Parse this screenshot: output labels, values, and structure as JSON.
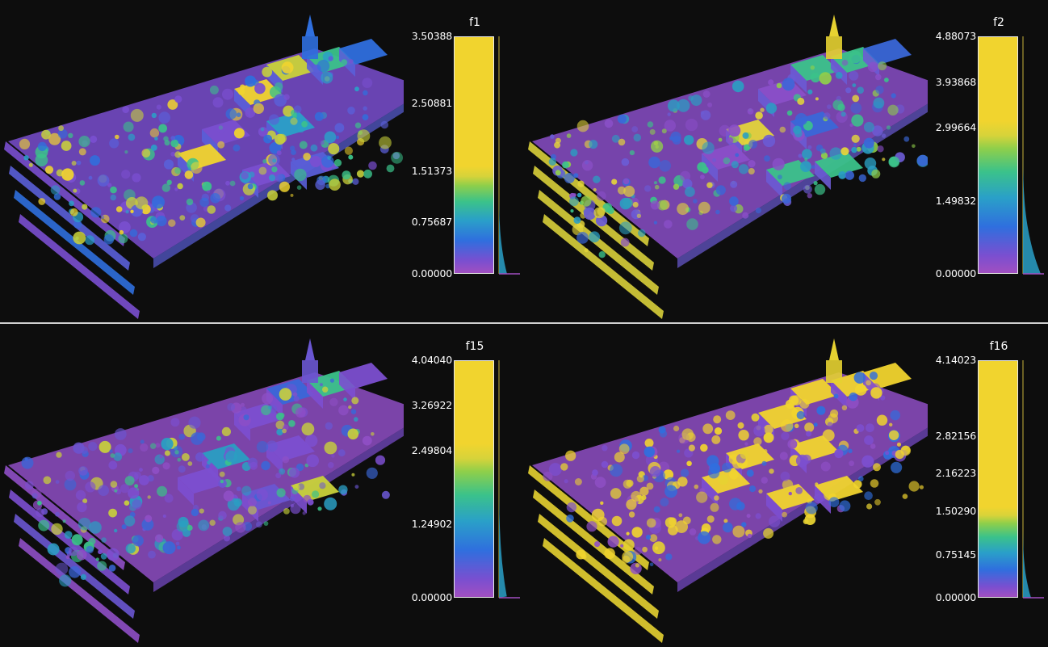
{
  "colors": {
    "background": "#0d0d0d",
    "divider": "#cfcfcf",
    "colormap": [
      "#a14fc1",
      "#2f6fde",
      "#3bc28a",
      "#f1d42e"
    ]
  },
  "views": [
    {
      "feature": "f1",
      "ticks": [
        "3.50388",
        "2.50881",
        "1.51373",
        "0.75687",
        "0.00000"
      ],
      "tick_values": [
        3.50388,
        2.50881,
        1.51373,
        0.75687,
        0.0
      ],
      "max_value": 3.50388,
      "split_value": 1.51373,
      "palette": "low"
    },
    {
      "feature": "f2",
      "ticks": [
        "4.88073",
        "3.93868",
        "2.99664",
        "1.49832",
        "0.00000"
      ],
      "tick_values": [
        4.88073,
        3.93868,
        2.99664,
        1.49832,
        0.0
      ],
      "max_value": 4.88073,
      "split_value": 2.99664,
      "palette": "mid"
    },
    {
      "feature": "f15",
      "ticks": [
        "4.04040",
        "3.26922",
        "2.49804",
        "1.24902",
        "0.00000"
      ],
      "tick_values": [
        4.0404,
        3.26922,
        2.49804,
        1.24902,
        0.0
      ],
      "max_value": 4.0404,
      "split_value": 2.49804,
      "palette": "purple"
    },
    {
      "feature": "f16",
      "ticks": [
        "4.14023",
        "2.82156",
        "2.16223",
        "1.50290",
        "0.75145",
        "0.00000"
      ],
      "tick_values": [
        4.14023,
        2.82156,
        2.16223,
        1.5029,
        0.75145,
        0.0
      ],
      "max_value": 4.14023,
      "split_value": 1.5029,
      "palette": "yellow"
    }
  ]
}
